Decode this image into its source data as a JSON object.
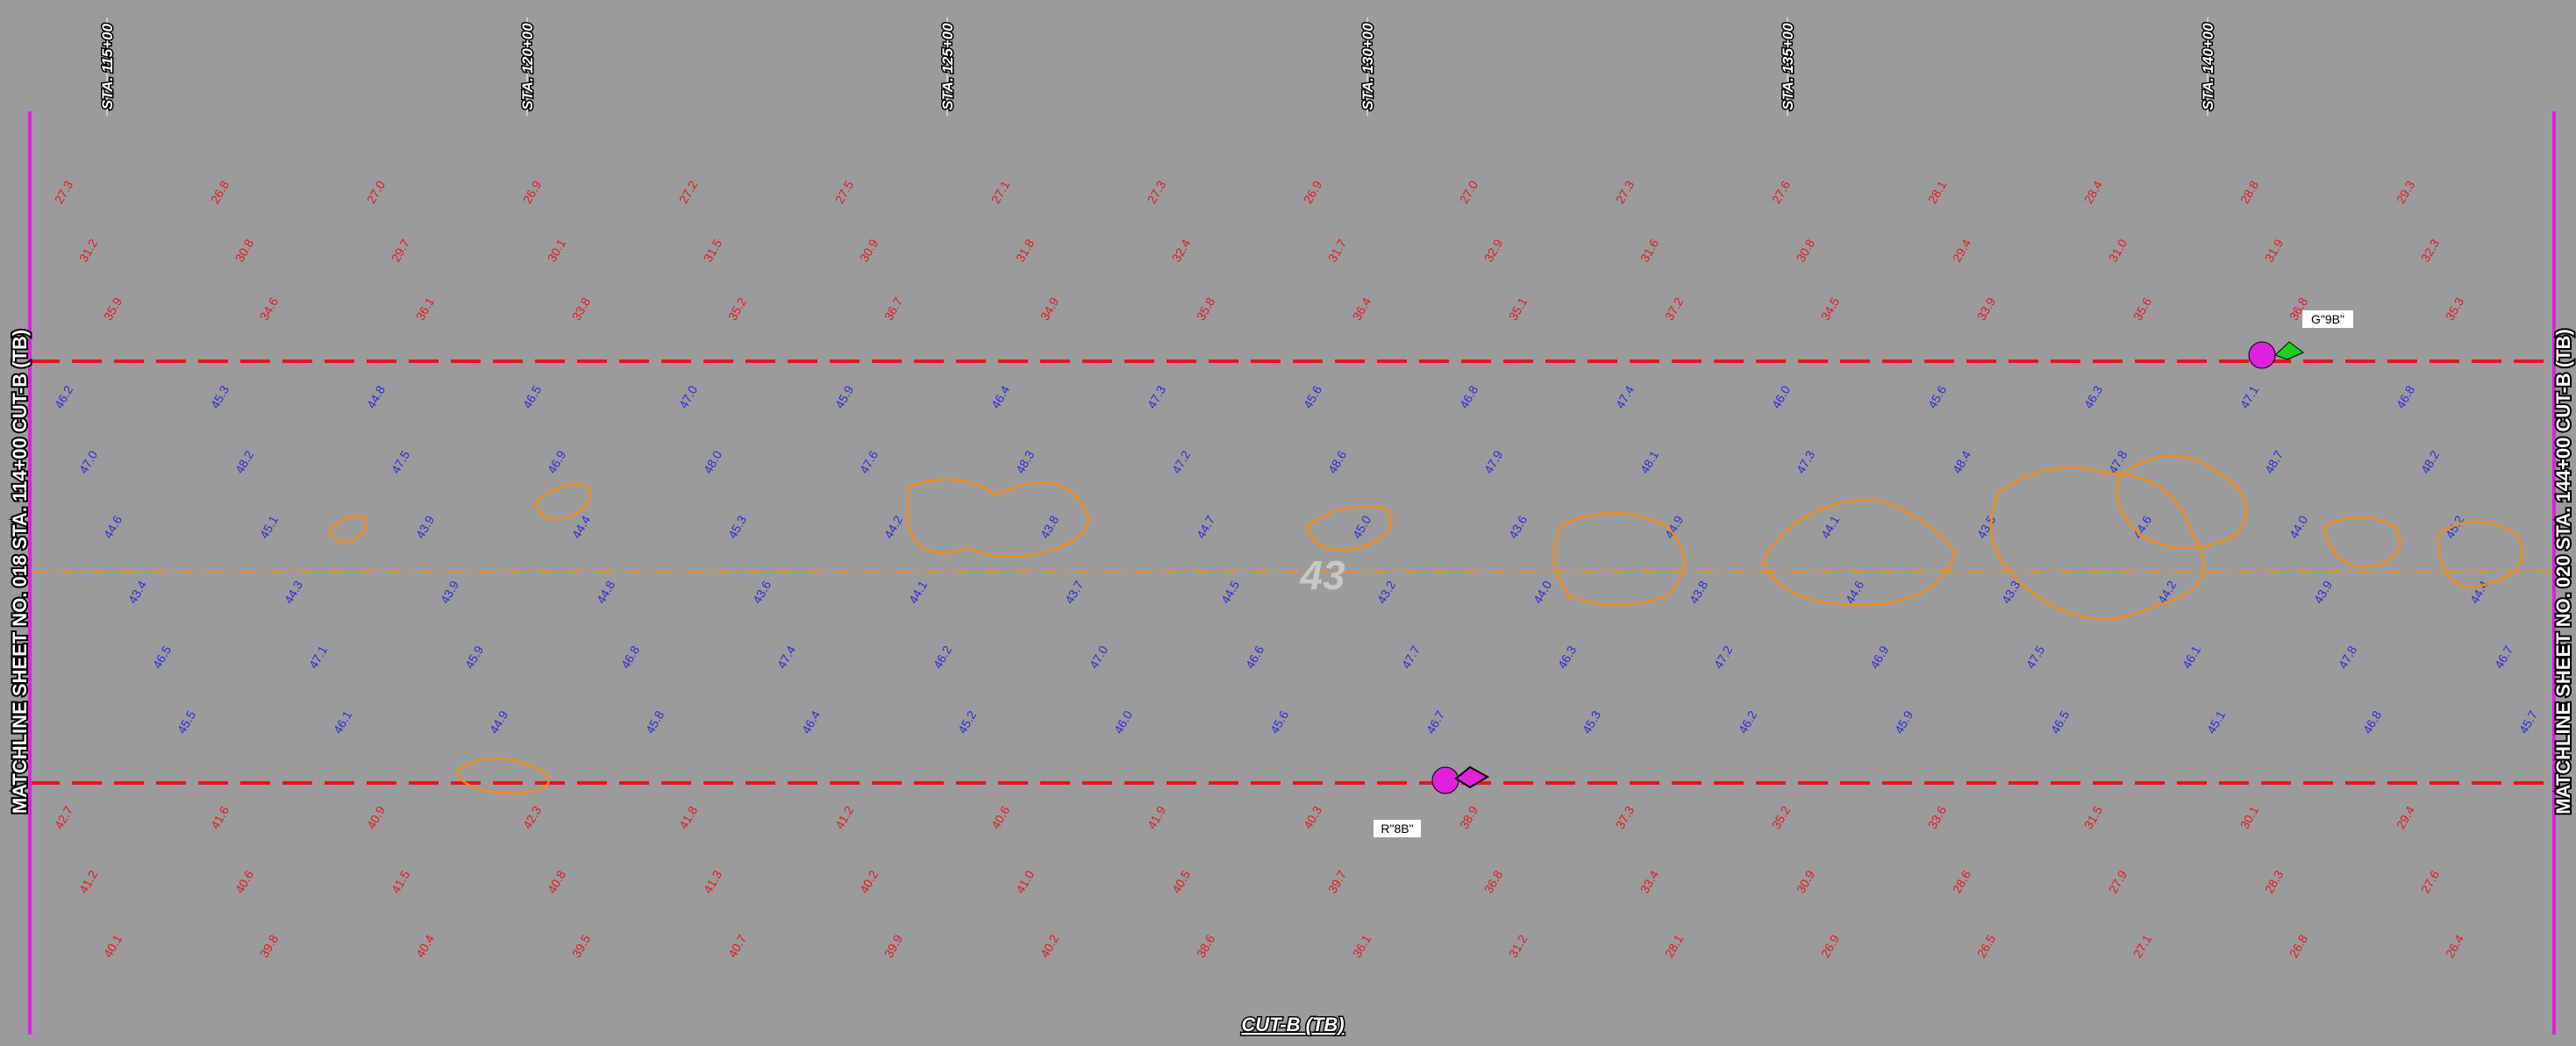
{
  "stations": [
    "STA. 115+00",
    "STA. 120+00",
    "STA. 125+00",
    "STA. 130+00",
    "STA. 135+00",
    "STA. 140+00"
  ],
  "matchline_left": "MATCHLINE SHEET NO. 018 STA. 114+00 CUT-B (TB)",
  "matchline_right": "MATCHLINE SHEET NO. 020 STA. 144+00 CUT-B (TB)",
  "cut_label": "CUT-B (TB)",
  "sheet_number": "43",
  "points": [
    {
      "label": "G\"9B\""
    },
    {
      "label": "R\"8B\""
    }
  ],
  "soundings": {
    "upper": [
      "27.3",
      "26.8",
      "27.0",
      "26.9",
      "27.2",
      "27.5",
      "27.1",
      "27.3",
      "26.9",
      "27.0",
      "27.3",
      "27.6",
      "28.1",
      "28.4",
      "28.8",
      "29.3",
      "31.2",
      "30.8",
      "29.7",
      "30.1",
      "31.5",
      "30.9",
      "31.8",
      "32.4",
      "31.7",
      "32.9",
      "31.6",
      "30.8",
      "29.4",
      "31.0",
      "31.9",
      "32.3",
      "35.9",
      "34.6",
      "36.1",
      "33.8",
      "35.2",
      "36.7",
      "34.9",
      "35.8",
      "36.4",
      "35.1",
      "37.2",
      "34.5",
      "33.9",
      "35.6",
      "36.8",
      "35.3"
    ],
    "channel": [
      "46.2",
      "45.3",
      "44.8",
      "46.5",
      "47.0",
      "45.9",
      "46.4",
      "47.3",
      "45.6",
      "46.8",
      "47.4",
      "46.0",
      "45.6",
      "46.3",
      "47.1",
      "46.8",
      "47.0",
      "48.2",
      "47.5",
      "46.9",
      "48.0",
      "47.6",
      "48.3",
      "47.2",
      "48.6",
      "47.9",
      "48.1",
      "47.3",
      "48.4",
      "47.8",
      "48.7",
      "48.2",
      "44.6",
      "45.1",
      "43.9",
      "44.4",
      "45.3",
      "44.2",
      "43.8",
      "44.7",
      "45.0",
      "43.6",
      "44.9",
      "44.1",
      "43.5",
      "44.6",
      "44.0",
      "45.2",
      "43.4",
      "44.3",
      "43.9",
      "44.8",
      "43.6",
      "44.1",
      "43.7",
      "44.5",
      "43.2",
      "44.0",
      "43.8",
      "44.6",
      "43.3",
      "44.2",
      "43.9",
      "44.4",
      "46.5",
      "47.1",
      "45.9",
      "46.8",
      "47.4",
      "46.2",
      "47.0",
      "46.6",
      "47.7",
      "46.3",
      "47.2",
      "46.9",
      "47.5",
      "46.1",
      "47.8",
      "46.7",
      "45.5",
      "46.1",
      "44.9",
      "45.8",
      "46.4",
      "45.2",
      "46.0",
      "45.6",
      "46.7",
      "45.3",
      "46.2",
      "45.9",
      "46.5",
      "45.1",
      "46.8",
      "45.7"
    ],
    "lower": [
      "42.7",
      "41.6",
      "40.9",
      "42.3",
      "41.8",
      "41.2",
      "40.6",
      "41.9",
      "40.3",
      "38.9",
      "37.3",
      "35.2",
      "33.6",
      "31.5",
      "30.1",
      "29.4",
      "41.2",
      "40.6",
      "41.5",
      "40.8",
      "41.3",
      "40.2",
      "41.0",
      "40.5",
      "39.7",
      "36.8",
      "33.4",
      "30.9",
      "28.6",
      "27.9",
      "28.3",
      "27.6",
      "40.1",
      "39.8",
      "40.4",
      "39.5",
      "40.7",
      "39.9",
      "40.2",
      "38.6",
      "36.1",
      "31.2",
      "28.1",
      "26.9",
      "26.5",
      "27.1",
      "26.8",
      "26.4"
    ]
  }
}
